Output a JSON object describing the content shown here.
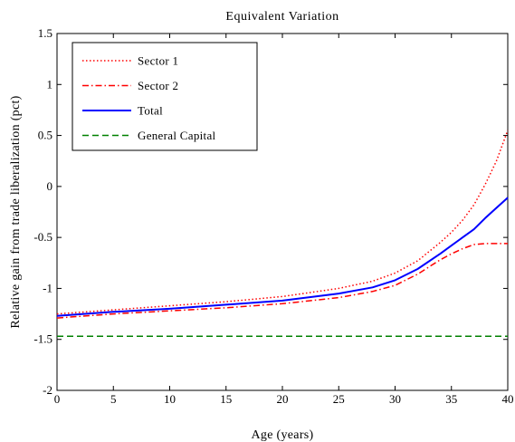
{
  "chart_data": {
    "type": "line",
    "title": "Equivalent Variation",
    "xlabel": "Age (years)",
    "ylabel": "Relative gain from trade liberalization (pct)",
    "xlim": [
      0,
      40
    ],
    "ylim": [
      -2,
      1.5
    ],
    "xticks": [
      0,
      5,
      10,
      15,
      20,
      25,
      30,
      35,
      40
    ],
    "yticks": [
      -2,
      -1.5,
      -1,
      -0.5,
      0,
      0.5,
      1,
      1.5
    ],
    "ytick_labels": [
      "-2",
      "-1.5",
      "-1",
      "-0.5",
      "0",
      "0.5",
      "1",
      "1.5"
    ],
    "grid": false,
    "legend_position": "top-left",
    "series": [
      {
        "name": "Sector 1",
        "color": "#ff0000",
        "style": "dotted",
        "x": [
          0,
          5,
          10,
          15,
          20,
          25,
          28,
          30,
          32,
          34,
          35,
          36,
          37,
          38,
          39,
          40
        ],
        "y": [
          -1.25,
          -1.21,
          -1.17,
          -1.13,
          -1.08,
          -1.0,
          -0.93,
          -0.85,
          -0.73,
          -0.55,
          -0.45,
          -0.33,
          -0.18,
          0.02,
          0.25,
          0.55
        ]
      },
      {
        "name": "Sector 2",
        "color": "#ff0000",
        "style": "dashdot",
        "x": [
          0,
          5,
          10,
          15,
          20,
          25,
          28,
          30,
          32,
          33,
          34,
          35,
          36,
          37,
          38,
          39,
          40
        ],
        "y": [
          -1.29,
          -1.25,
          -1.22,
          -1.19,
          -1.15,
          -1.09,
          -1.03,
          -0.97,
          -0.86,
          -0.79,
          -0.72,
          -0.66,
          -0.61,
          -0.57,
          -0.56,
          -0.56,
          -0.56
        ]
      },
      {
        "name": "Total",
        "color": "#0000ff",
        "style": "solid",
        "x": [
          0,
          5,
          10,
          15,
          20,
          25,
          28,
          30,
          32,
          34,
          35,
          36,
          37,
          38,
          39,
          40
        ],
        "y": [
          -1.27,
          -1.23,
          -1.2,
          -1.16,
          -1.12,
          -1.05,
          -0.99,
          -0.92,
          -0.81,
          -0.66,
          -0.58,
          -0.5,
          -0.42,
          -0.31,
          -0.21,
          -0.11
        ]
      },
      {
        "name": "General Capital",
        "color": "#008000",
        "style": "dashed",
        "x": [
          0,
          40
        ],
        "y": [
          -1.47,
          -1.47
        ]
      }
    ]
  }
}
